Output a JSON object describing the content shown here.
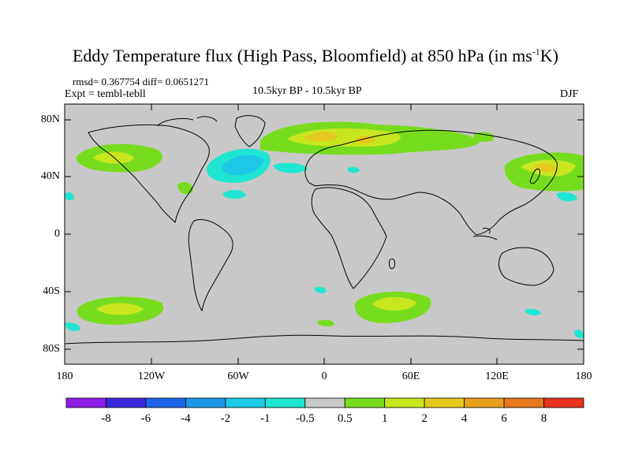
{
  "title": {
    "main": "Eddy Temperature flux (High Pass, Bloomfield) at 850 hPa (in ms",
    "sup": "-1",
    "end": "K)"
  },
  "stats": "rmsd= 0.367754 diff= 0.0651271",
  "experiment": "Expt = tembl-tebll",
  "period": "10.5kyr BP - 10.5kyr BP",
  "season": "DJF",
  "lat_ticks": [
    "80N",
    "40N",
    "0",
    "40S",
    "80S"
  ],
  "lon_ticks": [
    "180",
    "120W",
    "60W",
    "0",
    "60E",
    "120E",
    "180"
  ],
  "colorbar": {
    "labels": [
      "-8",
      "-6",
      "-4",
      "-2",
      "-1",
      "-0.5",
      "0.5",
      "1",
      "2",
      "4",
      "6",
      "8"
    ],
    "colors": [
      "#8c1ee6",
      "#3c28dc",
      "#1e64e6",
      "#1e96e6",
      "#1ec8e6",
      "#1ee6d2",
      "#c8c8c8",
      "#78dc1e",
      "#c8e61e",
      "#e6c81e",
      "#e6a01e",
      "#e6781e",
      "#e6321e"
    ]
  },
  "map": {
    "land_color": "#c8c8c8",
    "lat_range": [
      -90,
      90
    ],
    "lon_range": [
      -180,
      180
    ]
  }
}
